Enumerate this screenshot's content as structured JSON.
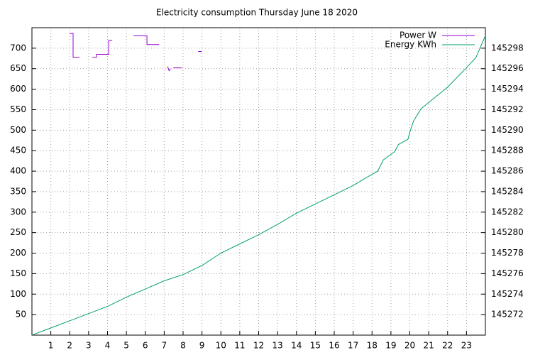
{
  "chart_data": {
    "type": "line",
    "title": "Electricity consumption Thursday June 18 2020",
    "xlim": [
      0,
      24
    ],
    "xticks": [
      1,
      2,
      3,
      4,
      5,
      6,
      7,
      8,
      9,
      10,
      11,
      12,
      13,
      14,
      15,
      16,
      17,
      18,
      19,
      20,
      21,
      22,
      23
    ],
    "ylim": [
      0,
      750
    ],
    "yticks": [
      50,
      100,
      150,
      200,
      250,
      300,
      350,
      400,
      450,
      500,
      550,
      600,
      650,
      700
    ],
    "y2lim": [
      145270,
      145300
    ],
    "y2ticks": [
      145272,
      145274,
      145276,
      145278,
      145280,
      145282,
      145284,
      145286,
      145288,
      145290,
      145292,
      145294,
      145296,
      145298
    ],
    "grid": true,
    "legend": "top-right",
    "series": [
      {
        "name": "Power W",
        "color": "#9400d3",
        "x": [
          1.99,
          2.18,
          2.18,
          2.52,
          null,
          3.2,
          3.42,
          3.42,
          4.06,
          4.06,
          4.25,
          null,
          5.38,
          6.09,
          6.09,
          6.73,
          null,
          7.18,
          7.26,
          7.33,
          null,
          7.48,
          7.94,
          null,
          8.8,
          8.99
        ],
        "values": [
          736,
          736,
          678,
          678,
          null,
          678,
          678,
          685,
          685,
          719,
          719,
          null,
          730,
          730,
          709,
          709,
          null,
          655,
          645,
          650,
          null,
          652,
          652,
          null,
          692,
          692
        ]
      },
      {
        "name": "Energy KWh",
        "color": "#009e73",
        "axis": "y2",
        "x": [
          0,
          1,
          2,
          3,
          4,
          5,
          6,
          7,
          8,
          9,
          10,
          11,
          12,
          13,
          14,
          15,
          16,
          17,
          18,
          18.3,
          18.6,
          19.2,
          19.4,
          19.9,
          20,
          20.2,
          20.6,
          21,
          22,
          23,
          23.5,
          24
        ],
        "values": [
          145270.0,
          145270.7,
          145271.4,
          145272.1,
          145272.8,
          145273.7,
          145274.5,
          145275.3,
          145275.9,
          145276.8,
          145278.0,
          145278.9,
          145279.8,
          145280.8,
          145281.9,
          145282.8,
          145283.7,
          145284.6,
          145285.7,
          145286.0,
          145287.1,
          145287.9,
          145288.6,
          145289.1,
          145289.8,
          145290.9,
          145292.1,
          145292.7,
          145294.2,
          145296.1,
          145297.1,
          145299.2
        ]
      }
    ]
  }
}
